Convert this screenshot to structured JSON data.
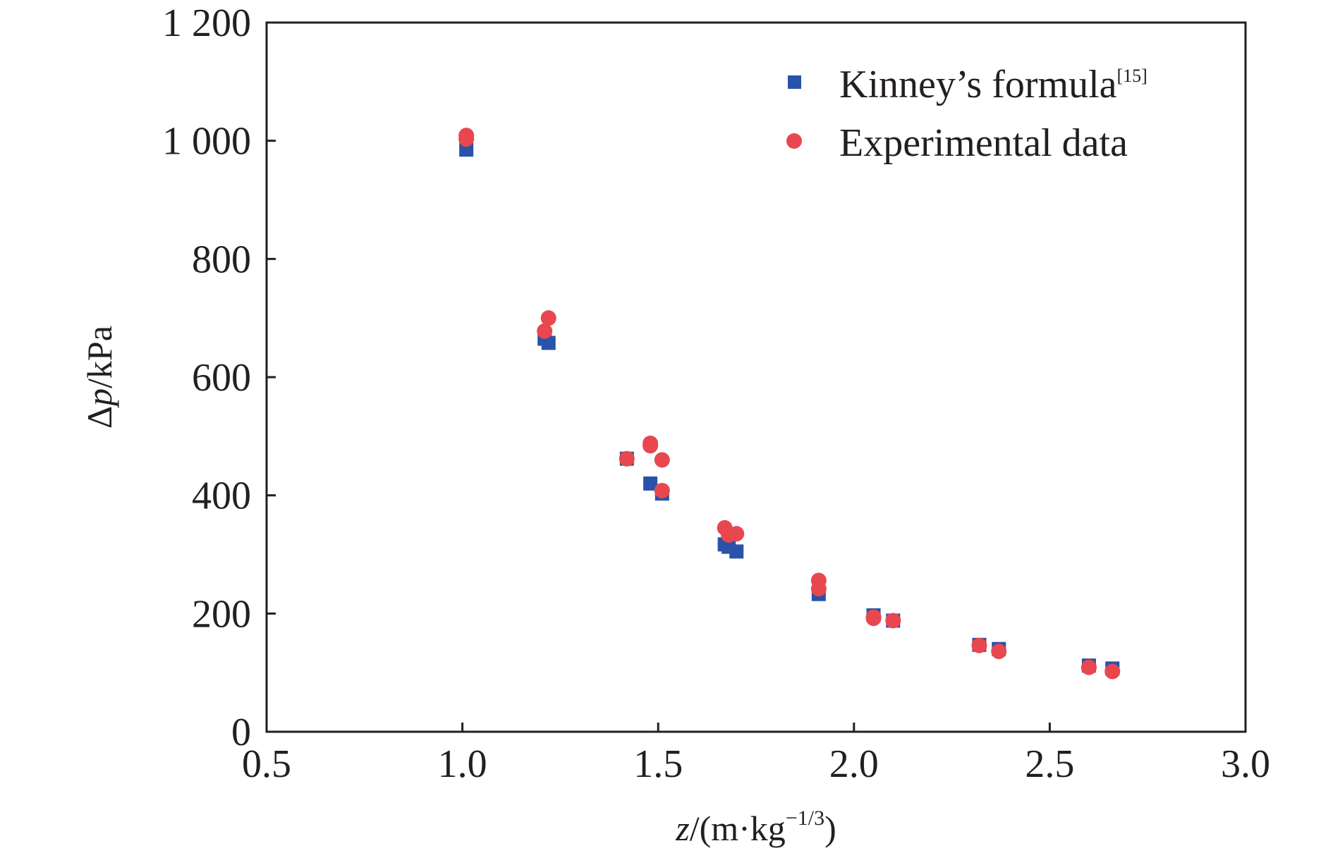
{
  "chart_data": {
    "type": "scatter",
    "title": "",
    "xlabel": "z/(m·kg−1/3)",
    "ylabel": "Δp/kPa",
    "xlim": [
      0.5,
      3.0
    ],
    "ylim": [
      0,
      1200
    ],
    "xticks": [
      0.5,
      1.0,
      1.5,
      2.0,
      2.5,
      3.0
    ],
    "xtick_labels": [
      "0.5",
      "1.0",
      "1.5",
      "2.0",
      "2.5",
      "3.0"
    ],
    "yticks": [
      0,
      200,
      400,
      600,
      800,
      1000,
      1200
    ],
    "ytick_labels": [
      "0",
      "200",
      "400",
      "600",
      "800",
      "1 000",
      "1 200"
    ],
    "grid": false,
    "legend_position": "top-right",
    "series": [
      {
        "name": "Kinney’s formula",
        "name_superscript": "[15]",
        "marker": "square",
        "color": "#2a52a8",
        "points": [
          [
            1.01,
            985
          ],
          [
            1.21,
            665
          ],
          [
            1.22,
            658
          ],
          [
            1.42,
            462
          ],
          [
            1.48,
            420
          ],
          [
            1.51,
            403
          ],
          [
            1.67,
            317
          ],
          [
            1.68,
            313
          ],
          [
            1.7,
            305
          ],
          [
            1.91,
            233
          ],
          [
            2.05,
            197
          ],
          [
            2.1,
            188
          ],
          [
            2.32,
            147
          ],
          [
            2.37,
            140
          ],
          [
            2.6,
            112
          ],
          [
            2.66,
            107
          ]
        ]
      },
      {
        "name": "Experimental data",
        "marker": "circle",
        "color": "#e8474f",
        "points": [
          [
            1.01,
            1009
          ],
          [
            1.01,
            1003
          ],
          [
            1.21,
            678
          ],
          [
            1.22,
            700
          ],
          [
            1.42,
            462
          ],
          [
            1.48,
            488
          ],
          [
            1.48,
            484
          ],
          [
            1.51,
            460
          ],
          [
            1.51,
            408
          ],
          [
            1.67,
            345
          ],
          [
            1.68,
            333
          ],
          [
            1.7,
            335
          ],
          [
            1.91,
            256
          ],
          [
            1.91,
            242
          ],
          [
            2.05,
            192
          ],
          [
            2.05,
            194
          ],
          [
            2.1,
            188
          ],
          [
            2.32,
            146
          ],
          [
            2.37,
            136
          ],
          [
            2.6,
            109
          ],
          [
            2.66,
            102
          ]
        ]
      }
    ]
  }
}
